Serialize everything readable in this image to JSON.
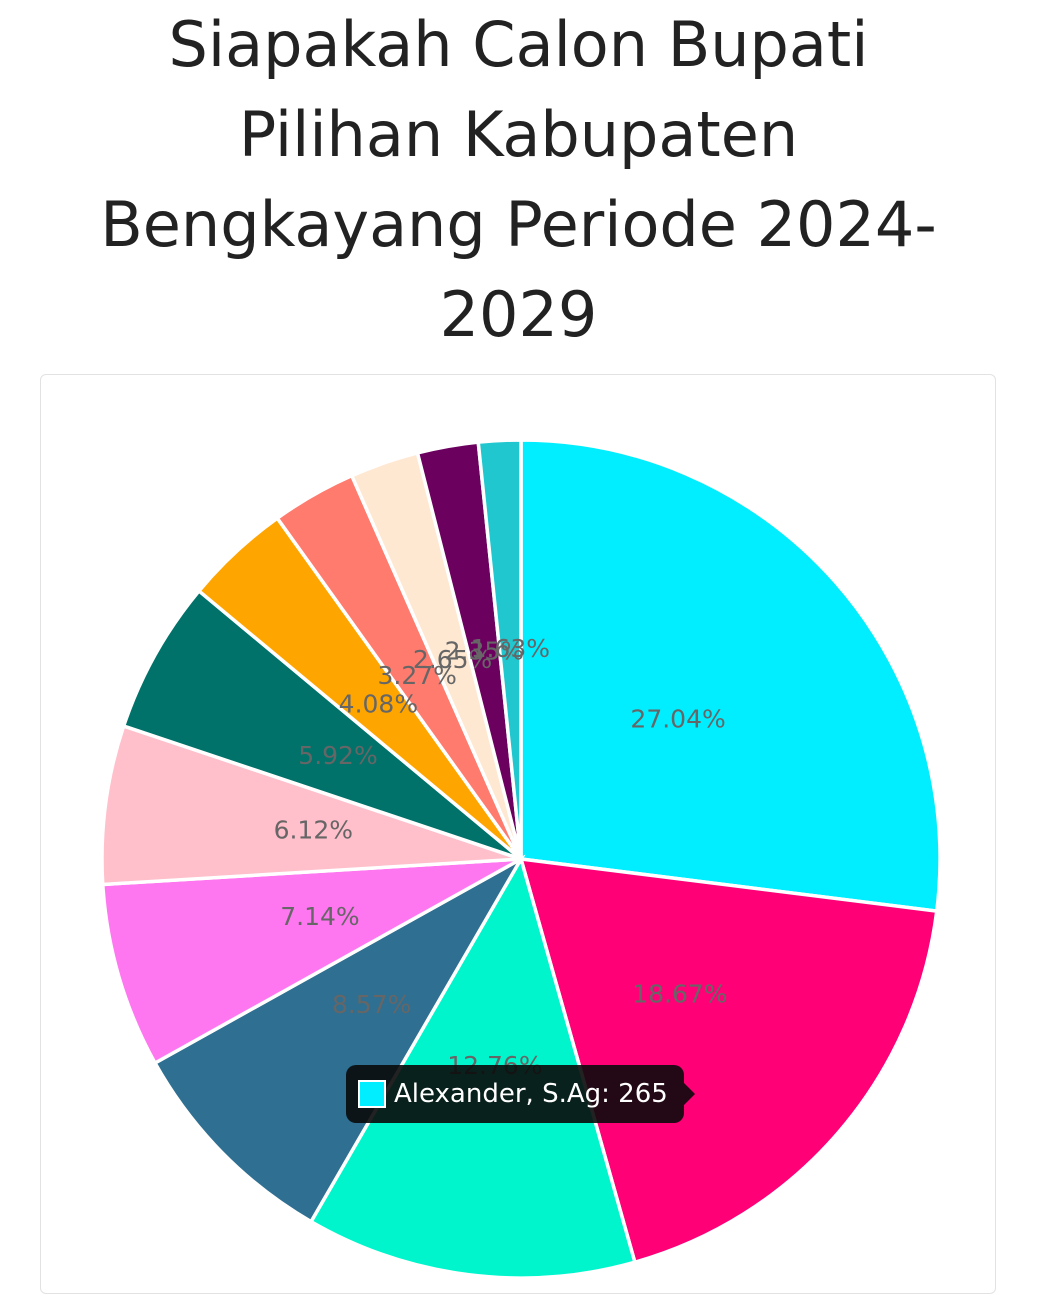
{
  "title_lines": [
    "Siapakah Calon Bupati",
    "Pilihan Kabupaten",
    "Bengkayang Periode 2024-",
    "2029"
  ],
  "chart_data": {
    "type": "pie",
    "title": "Siapakah Calon Bupati Pilihan Kabupaten Bengkayang Periode 2024-2029",
    "slices": [
      {
        "label": "27.04%",
        "percent": 27.04,
        "color": "#00eeff"
      },
      {
        "label": "18.67%",
        "percent": 18.67,
        "color": "#ff0077"
      },
      {
        "label": "12.76%",
        "percent": 12.76,
        "color": "#00f5cc"
      },
      {
        "label": "8.57%",
        "percent": 8.57,
        "color": "#2e6f92"
      },
      {
        "label": "7.14%",
        "percent": 7.14,
        "color": "#ff77f0"
      },
      {
        "label": "6.12%",
        "percent": 6.12,
        "color": "#ffbfcb"
      },
      {
        "label": "5.92%",
        "percent": 5.92,
        "color": "#00726a"
      },
      {
        "label": "4.08%",
        "percent": 4.08,
        "color": "#ffa500"
      },
      {
        "label": "3.27%",
        "percent": 3.27,
        "color": "#ff7b6e"
      },
      {
        "label": "2.65%",
        "percent": 2.65,
        "color": "#ffe8d2"
      },
      {
        "label": "2.35%",
        "percent": 2.35,
        "color": "#6b005f"
      },
      {
        "label": "1.63%",
        "percent": 1.63,
        "color": "#20c7cf"
      }
    ],
    "tooltip": {
      "text": "Alexander, S.Ag: 265",
      "color": "#00eeff"
    }
  }
}
